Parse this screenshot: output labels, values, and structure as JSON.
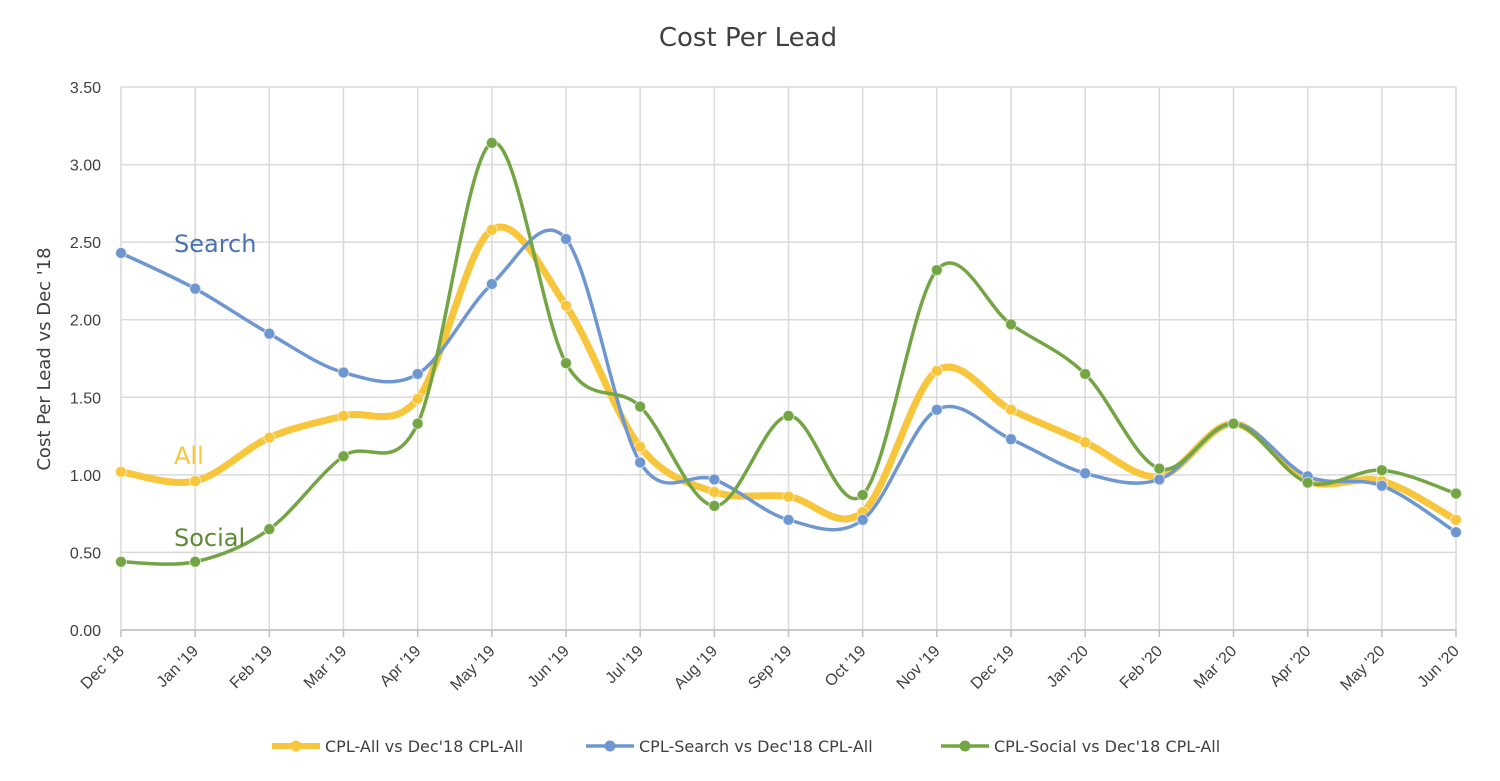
{
  "chart_data": {
    "type": "line",
    "title": "Cost Per Lead",
    "xlabel": "",
    "ylabel": "Cost Per Lead vs Dec '18",
    "ylim": [
      0,
      3.5
    ],
    "y_ticks": [
      "0.00",
      "0.50",
      "1.00",
      "1.50",
      "2.00",
      "2.50",
      "3.00",
      "3.50"
    ],
    "grid": true,
    "legend_position": "bottom",
    "categories": [
      "Dec '18",
      "Jan '19",
      "Feb '19",
      "Mar '19",
      "Apr '19",
      "May '19",
      "Jun '19",
      "Jul '19",
      "Aug '19",
      "Sep '19",
      "Oct '19",
      "Nov '19",
      "Dec '19",
      "Jan '20",
      "Feb '20",
      "Mar '20",
      "Apr '20",
      "May '20",
      "Jun '20"
    ],
    "series": [
      {
        "name": "CPL-All vs Dec'18 CPL-All",
        "color": "#F8C63C",
        "values": [
          1.02,
          0.96,
          1.24,
          1.38,
          1.49,
          2.58,
          2.09,
          1.18,
          0.89,
          0.86,
          0.76,
          1.67,
          1.42,
          1.21,
          0.99,
          1.33,
          0.96,
          0.96,
          0.71
        ]
      },
      {
        "name": "CPL-Search vs Dec'18 CPL-All",
        "color": "#6E97D2",
        "values": [
          2.43,
          2.2,
          1.91,
          1.66,
          1.65,
          2.23,
          2.52,
          1.08,
          0.97,
          0.71,
          0.71,
          1.42,
          1.23,
          1.01,
          0.97,
          1.33,
          0.99,
          0.93,
          0.63
        ]
      },
      {
        "name": "CPL-Social vs Dec'18 CPL-All",
        "color": "#74A545",
        "values": [
          0.44,
          0.44,
          0.65,
          1.12,
          1.33,
          3.14,
          1.72,
          1.44,
          0.8,
          1.38,
          0.87,
          2.32,
          1.97,
          1.65,
          1.04,
          1.33,
          0.95,
          1.03,
          0.88
        ]
      }
    ],
    "annotations": [
      {
        "text": "Search",
        "color": "#4A72B0"
      },
      {
        "text": "All",
        "color": "#F8C63C"
      },
      {
        "text": "Social",
        "color": "#5E8A38"
      }
    ]
  }
}
